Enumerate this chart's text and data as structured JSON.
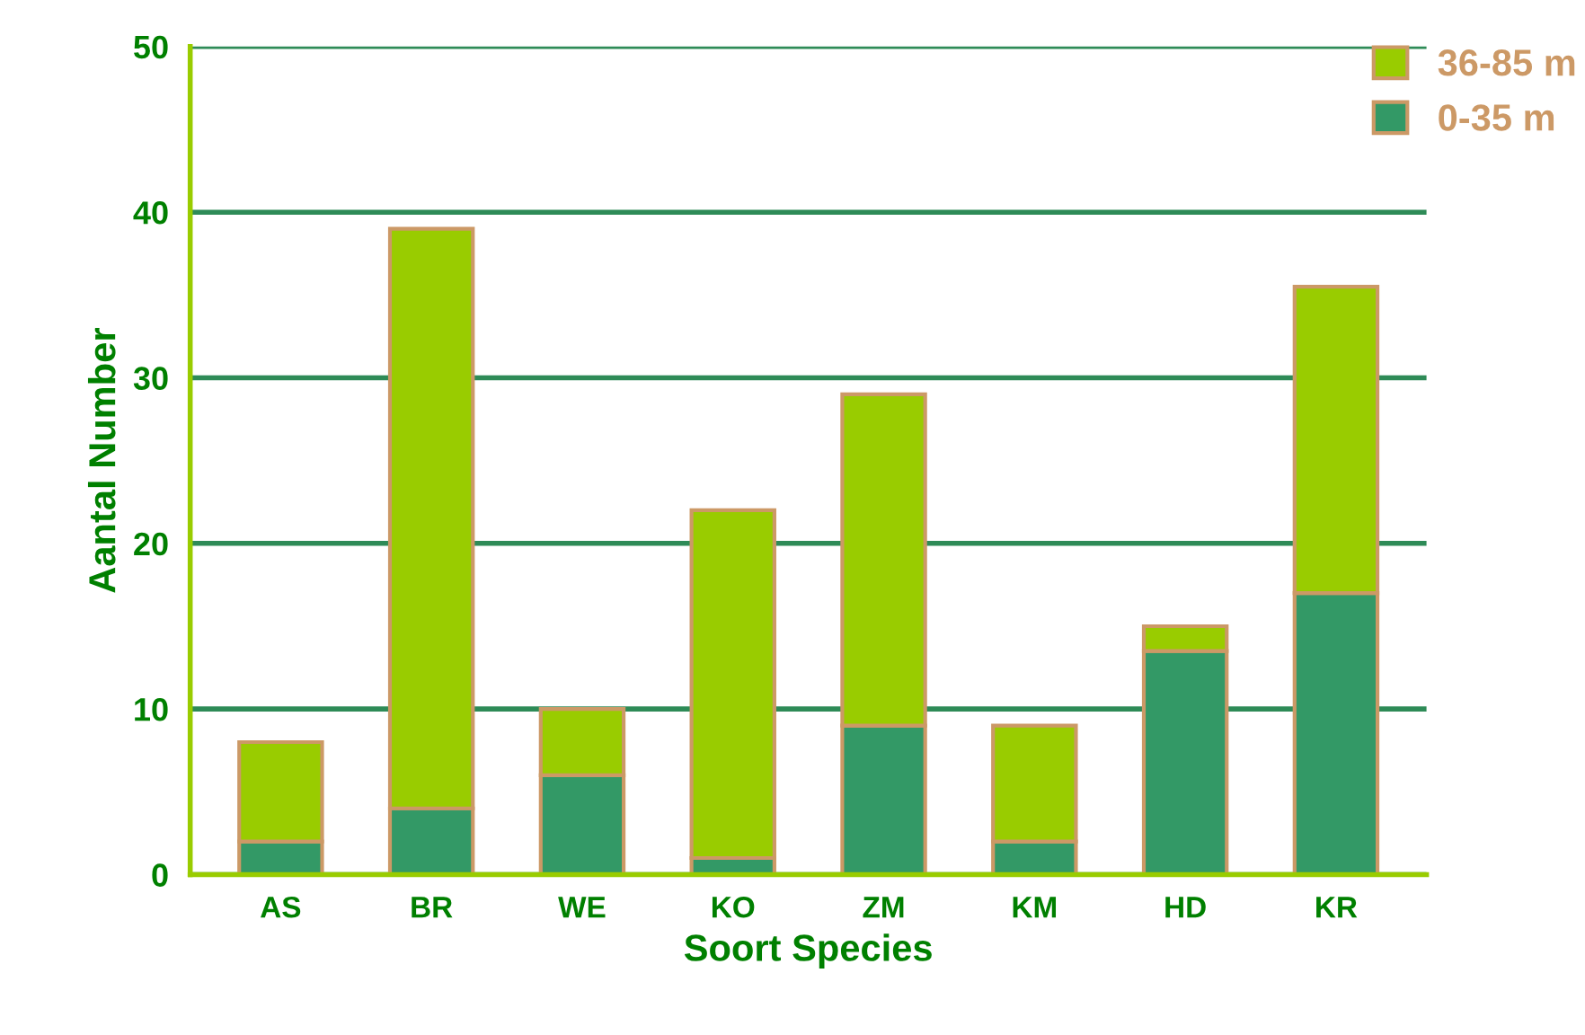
{
  "chart_data": {
    "type": "bar",
    "stacked": true,
    "xlabel": "Soort Species",
    "ylabel": "Aantal Number",
    "categories": [
      "AS",
      "BR",
      "WE",
      "KO",
      "ZM",
      "KM",
      "HD",
      "KR"
    ],
    "series": [
      {
        "name": "0-35 m",
        "color": "#339966",
        "values": [
          2,
          4,
          6,
          1,
          9,
          2,
          13.5,
          17
        ]
      },
      {
        "name": "36-85 m",
        "color": "#99cc00",
        "values": [
          6,
          35,
          4,
          21,
          20,
          7,
          1.5,
          18.5
        ]
      }
    ],
    "ylim": [
      0,
      50
    ],
    "yticks": [
      0,
      10,
      20,
      30,
      40,
      50
    ],
    "grid": "y",
    "legend": "top right"
  }
}
